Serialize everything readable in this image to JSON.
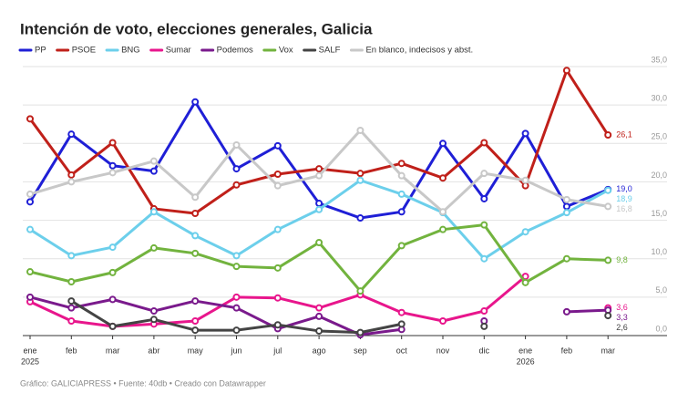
{
  "chart_data": {
    "type": "line",
    "title": "Intención de voto, elecciones generales, Galicia",
    "source": "Gráfico: GALICIAPRESS • Fuente: 40db • Creado con Datawrapper",
    "categories": [
      [
        "ene",
        "2025"
      ],
      [
        "feb"
      ],
      [
        "mar"
      ],
      [
        "abr"
      ],
      [
        "may"
      ],
      [
        "jun"
      ],
      [
        "jul"
      ],
      [
        "ago"
      ],
      [
        "sep"
      ],
      [
        "oct"
      ],
      [
        "nov"
      ],
      [
        "dic"
      ],
      [
        "ene",
        "2026"
      ],
      [
        "feb"
      ],
      [
        "mar"
      ]
    ],
    "ylim": [
      0,
      35
    ],
    "yticks": [
      {
        "value": 0,
        "label": "0,0"
      },
      {
        "value": 5,
        "label": "5,0"
      },
      {
        "value": 10,
        "label": "10,0"
      },
      {
        "value": 15,
        "label": "15,0"
      },
      {
        "value": 20,
        "label": "20,0"
      },
      {
        "value": 25,
        "label": "25,0"
      },
      {
        "value": 30,
        "label": "30,0"
      },
      {
        "value": 35,
        "label": "35,0"
      }
    ],
    "grid": true,
    "series": [
      {
        "name": "PP",
        "color": "#1f1fd6",
        "values": [
          17.4,
          26.2,
          22.1,
          21.4,
          30.4,
          21.7,
          24.7,
          17.2,
          15.3,
          16.1,
          25.0,
          17.8,
          26.3,
          16.8,
          19.0
        ],
        "value_labels": [
          null,
          null,
          null,
          null,
          null,
          null,
          null,
          null,
          null,
          null,
          null,
          null,
          null,
          null,
          "19,0"
        ]
      },
      {
        "name": "PSOE",
        "color": "#c0201a",
        "values": [
          28.2,
          20.9,
          25.1,
          16.5,
          15.9,
          19.6,
          21.0,
          21.7,
          21.1,
          22.4,
          20.5,
          25.1,
          19.5,
          34.5,
          26.1
        ],
        "value_labels": [
          null,
          null,
          null,
          null,
          null,
          null,
          null,
          null,
          null,
          null,
          null,
          null,
          null,
          null,
          "26,1"
        ]
      },
      {
        "name": "BNG",
        "color": "#6ccfeb",
        "values": [
          13.8,
          10.4,
          11.5,
          16.1,
          13.0,
          10.4,
          13.8,
          16.4,
          20.2,
          18.4,
          16.0,
          10.0,
          13.5,
          16.0,
          18.9
        ],
        "value_labels": [
          null,
          null,
          null,
          null,
          null,
          null,
          null,
          null,
          null,
          null,
          null,
          null,
          null,
          null,
          "18,9"
        ]
      },
      {
        "name": "Sumar",
        "color": "#e8168c",
        "values": [
          4.4,
          1.9,
          1.2,
          1.5,
          1.9,
          5.0,
          4.9,
          3.6,
          5.3,
          3.0,
          1.9,
          3.2,
          7.7,
          null,
          3.6
        ],
        "value_labels": [
          null,
          null,
          null,
          null,
          null,
          null,
          null,
          null,
          null,
          null,
          null,
          null,
          null,
          null,
          "3,6"
        ]
      },
      {
        "name": "Podemos",
        "color": "#7a1a8c",
        "values": [
          5.0,
          3.6,
          4.7,
          3.2,
          4.5,
          3.6,
          0.9,
          2.5,
          0.1,
          0.8,
          null,
          1.9,
          null,
          3.1,
          3.3
        ],
        "value_labels": [
          null,
          null,
          null,
          null,
          null,
          null,
          null,
          null,
          null,
          null,
          null,
          null,
          null,
          null,
          "3,3"
        ]
      },
      {
        "name": "Vox",
        "color": "#72b33e",
        "values": [
          8.3,
          7.0,
          8.2,
          11.4,
          10.7,
          9.0,
          8.8,
          12.1,
          5.8,
          11.7,
          13.8,
          14.4,
          6.9,
          10.0,
          9.8
        ],
        "value_labels": [
          null,
          null,
          null,
          null,
          null,
          null,
          null,
          null,
          null,
          null,
          null,
          null,
          null,
          null,
          "9,8"
        ]
      },
      {
        "name": "SALF",
        "color": "#444444",
        "values": [
          null,
          4.5,
          1.2,
          2.1,
          0.7,
          0.7,
          1.4,
          0.6,
          0.4,
          1.5,
          null,
          1.2,
          null,
          null,
          2.6
        ],
        "value_labels": [
          null,
          null,
          null,
          null,
          null,
          null,
          null,
          null,
          null,
          null,
          null,
          null,
          null,
          null,
          "2,6"
        ]
      },
      {
        "name": "En blanco, indecisos y abst.",
        "color": "#c8c8c8",
        "values": [
          18.4,
          20.0,
          21.2,
          22.7,
          18.0,
          24.8,
          19.5,
          20.8,
          26.7,
          20.8,
          16.1,
          21.1,
          20.2,
          17.7,
          16.8
        ],
        "value_labels": [
          null,
          null,
          null,
          null,
          null,
          null,
          null,
          null,
          null,
          null,
          null,
          null,
          null,
          null,
          "16,8"
        ]
      }
    ]
  }
}
